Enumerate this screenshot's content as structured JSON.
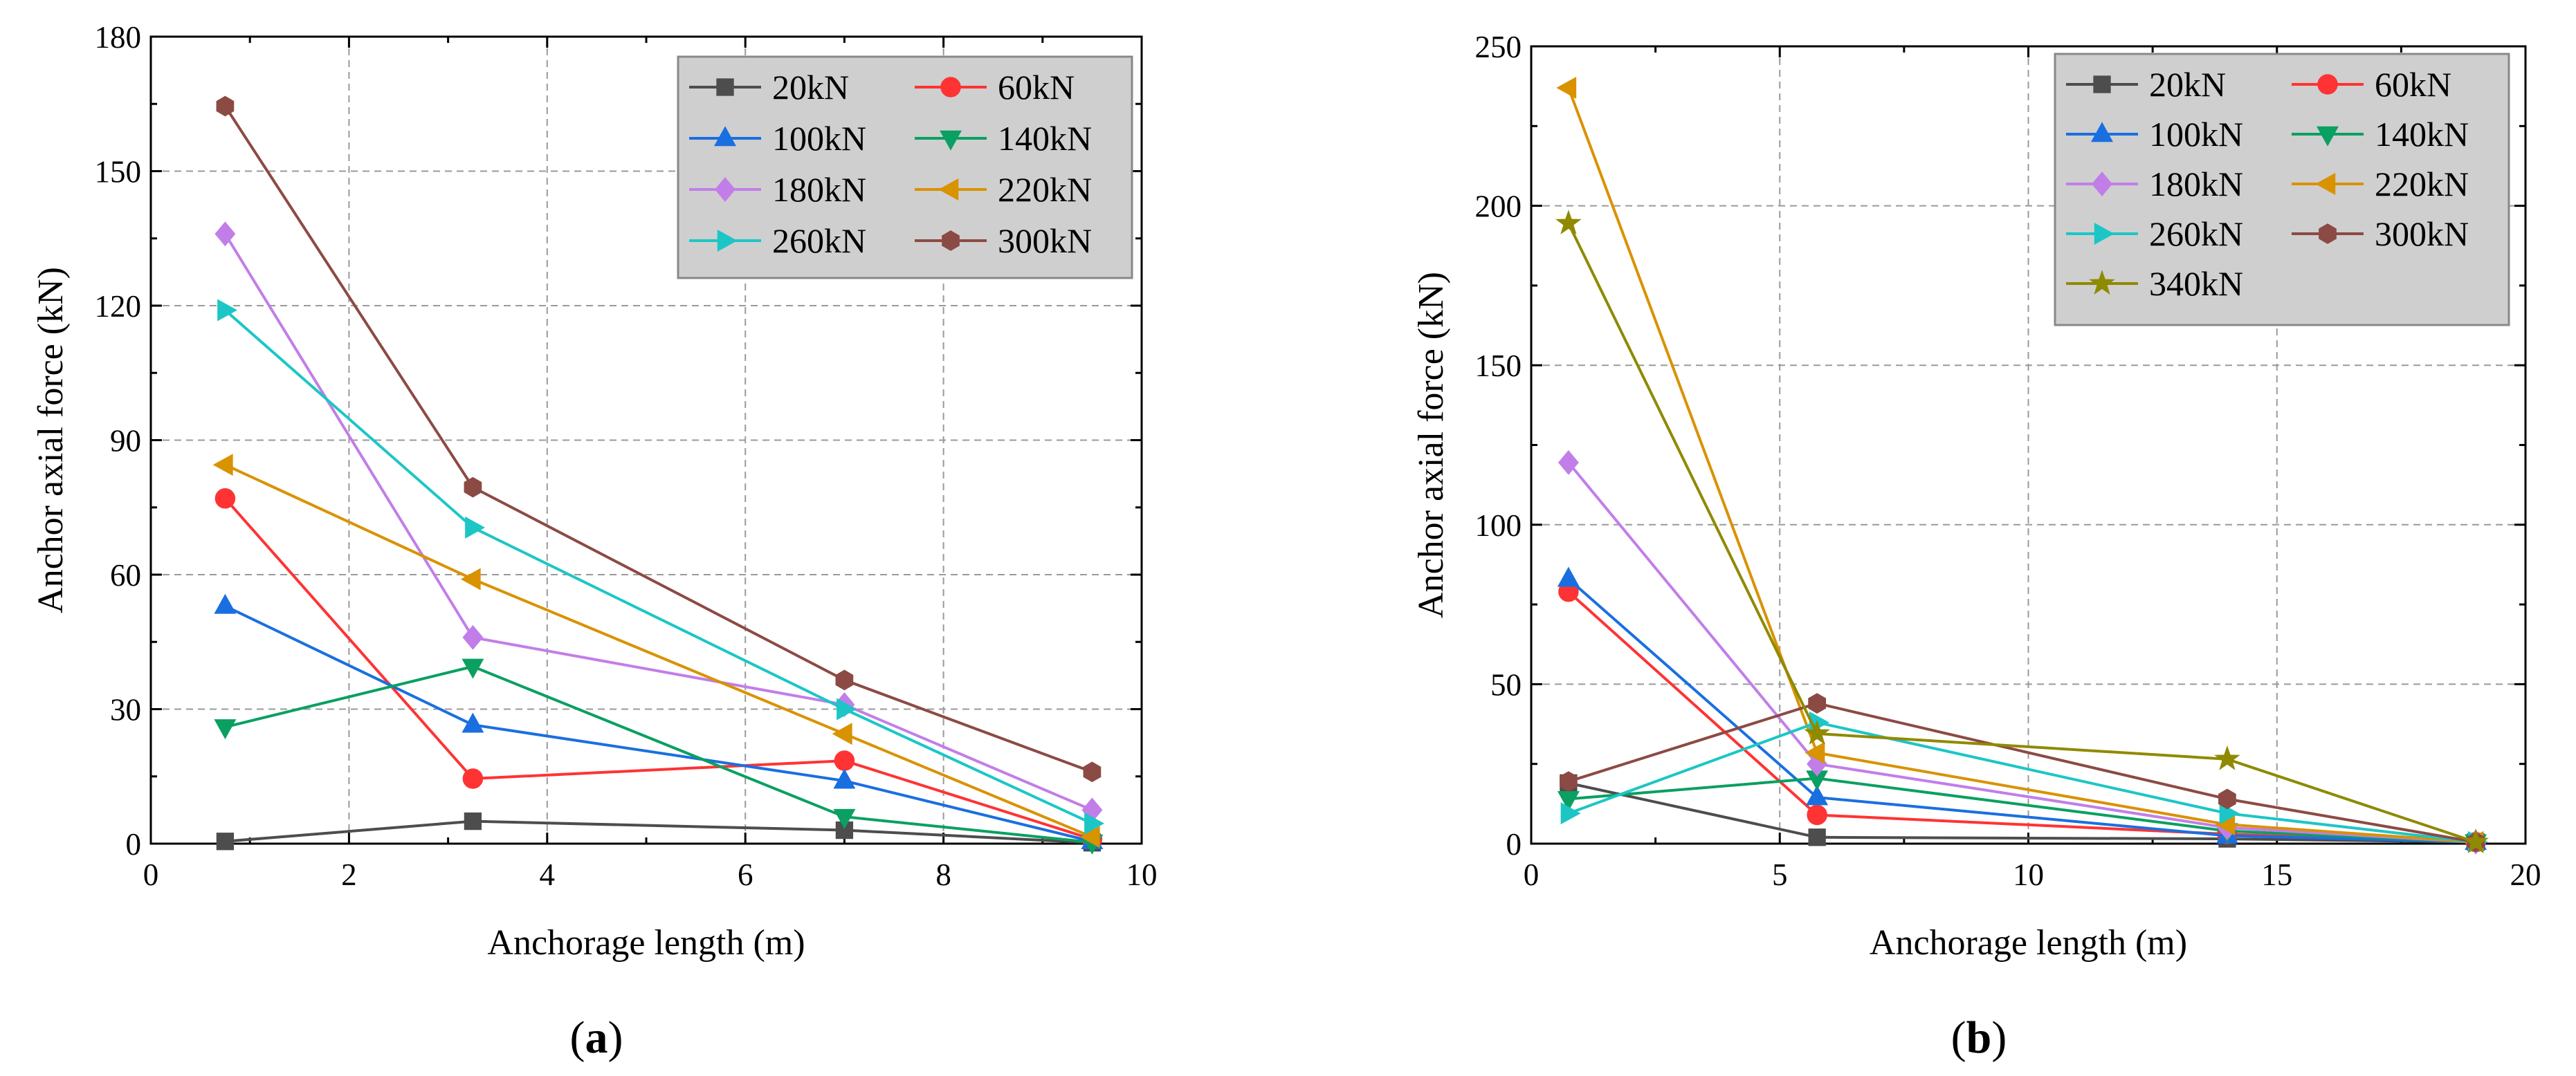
{
  "chart_data": [
    {
      "type": "line",
      "panel_label": "(a)",
      "xlabel": "Anchorage length (m)",
      "ylabel": "Anchor axial force (kN)",
      "xlim": [
        0,
        10
      ],
      "ylim": [
        0,
        180
      ],
      "xticks": [
        0,
        2,
        4,
        6,
        8,
        10
      ],
      "yticks": [
        0,
        30,
        60,
        90,
        120,
        150,
        180
      ],
      "grid": true,
      "legend_position": "top-right",
      "legend_columns": 2,
      "series": [
        {
          "name": "20kN",
          "color": "#4d4d4d",
          "marker": "square",
          "x": [
            0.75,
            3.25,
            7.0,
            9.5
          ],
          "y": [
            0.5,
            5,
            3,
            0.2
          ]
        },
        {
          "name": "60kN",
          "color": "#ff3333",
          "marker": "circle",
          "x": [
            0.75,
            3.25,
            7.0,
            9.5
          ],
          "y": [
            77,
            14.5,
            18.5,
            1
          ]
        },
        {
          "name": "100kN",
          "color": "#1a6fe0",
          "marker": "triangle-up",
          "x": [
            0.75,
            3.25,
            7.0,
            9.5
          ],
          "y": [
            53,
            26.5,
            14,
            0.5
          ]
        },
        {
          "name": "140kN",
          "color": "#0aa061",
          "marker": "triangle-down",
          "x": [
            0.75,
            3.25,
            7.0,
            9.5
          ],
          "y": [
            26,
            39.5,
            6,
            0.3
          ]
        },
        {
          "name": "180kN",
          "color": "#c27ee8",
          "marker": "diamond",
          "x": [
            0.75,
            3.25,
            7.0,
            9.5
          ],
          "y": [
            136,
            46,
            31,
            7.5
          ]
        },
        {
          "name": "220kN",
          "color": "#d99200",
          "marker": "triangle-left",
          "x": [
            0.75,
            3.25,
            7.0,
            9.5
          ],
          "y": [
            84.5,
            59,
            24.5,
            1.5
          ]
        },
        {
          "name": "260kN",
          "color": "#1cc6c6",
          "marker": "triangle-right",
          "x": [
            0.75,
            3.25,
            7.0,
            9.5
          ],
          "y": [
            119,
            70.5,
            30,
            4.5
          ]
        },
        {
          "name": "300kN",
          "color": "#8c4a44",
          "marker": "hexagon",
          "x": [
            0.75,
            3.25,
            7.0,
            9.5
          ],
          "y": [
            164.5,
            79.5,
            36.5,
            16
          ]
        }
      ]
    },
    {
      "type": "line",
      "panel_label": "(b)",
      "xlabel": "Anchorage length (m)",
      "ylabel": "Anchor axial force (kN)",
      "xlim": [
        0,
        20
      ],
      "ylim": [
        0,
        250
      ],
      "xticks": [
        0,
        5,
        10,
        15,
        20
      ],
      "yticks": [
        0,
        50,
        100,
        150,
        200,
        250
      ],
      "grid": true,
      "legend_position": "top-right",
      "legend_columns": 2,
      "series": [
        {
          "name": "20kN",
          "color": "#4d4d4d",
          "marker": "square",
          "x": [
            0.75,
            5.75,
            14.0,
            19.0
          ],
          "y": [
            19,
            2,
            1.5,
            0.5
          ]
        },
        {
          "name": "60kN",
          "color": "#ff3333",
          "marker": "circle",
          "x": [
            0.75,
            5.75,
            14.0,
            19.0
          ],
          "y": [
            79,
            9,
            3,
            0.5
          ]
        },
        {
          "name": "100kN",
          "color": "#1a6fe0",
          "marker": "triangle-up",
          "x": [
            0.75,
            5.75,
            14.0,
            19.0
          ],
          "y": [
            83,
            14.5,
            2.5,
            0.5
          ]
        },
        {
          "name": "140kN",
          "color": "#0aa061",
          "marker": "triangle-down",
          "x": [
            0.75,
            5.75,
            14.0,
            19.0
          ],
          "y": [
            14,
            20.5,
            4,
            0.5
          ]
        },
        {
          "name": "180kN",
          "color": "#c27ee8",
          "marker": "diamond",
          "x": [
            0.75,
            5.75,
            14.0,
            19.0
          ],
          "y": [
            119.5,
            25,
            5,
            0.5
          ]
        },
        {
          "name": "220kN",
          "color": "#d99200",
          "marker": "triangle-left",
          "x": [
            0.75,
            5.75,
            14.0,
            19.0
          ],
          "y": [
            237,
            28.5,
            6,
            0.5
          ]
        },
        {
          "name": "260kN",
          "color": "#1cc6c6",
          "marker": "triangle-right",
          "x": [
            0.75,
            5.75,
            14.0,
            19.0
          ],
          "y": [
            9.5,
            38,
            9.5,
            0.5
          ]
        },
        {
          "name": "300kN",
          "color": "#8c4a44",
          "marker": "hexagon",
          "x": [
            0.75,
            5.75,
            14.0,
            19.0
          ],
          "y": [
            19.5,
            44,
            14,
            0.5
          ]
        },
        {
          "name": "340kN",
          "color": "#8f8a00",
          "marker": "star",
          "x": [
            0.75,
            5.75,
            14.0,
            19.0
          ],
          "y": [
            194.5,
            34.5,
            26.5,
            0.5
          ]
        }
      ]
    }
  ]
}
